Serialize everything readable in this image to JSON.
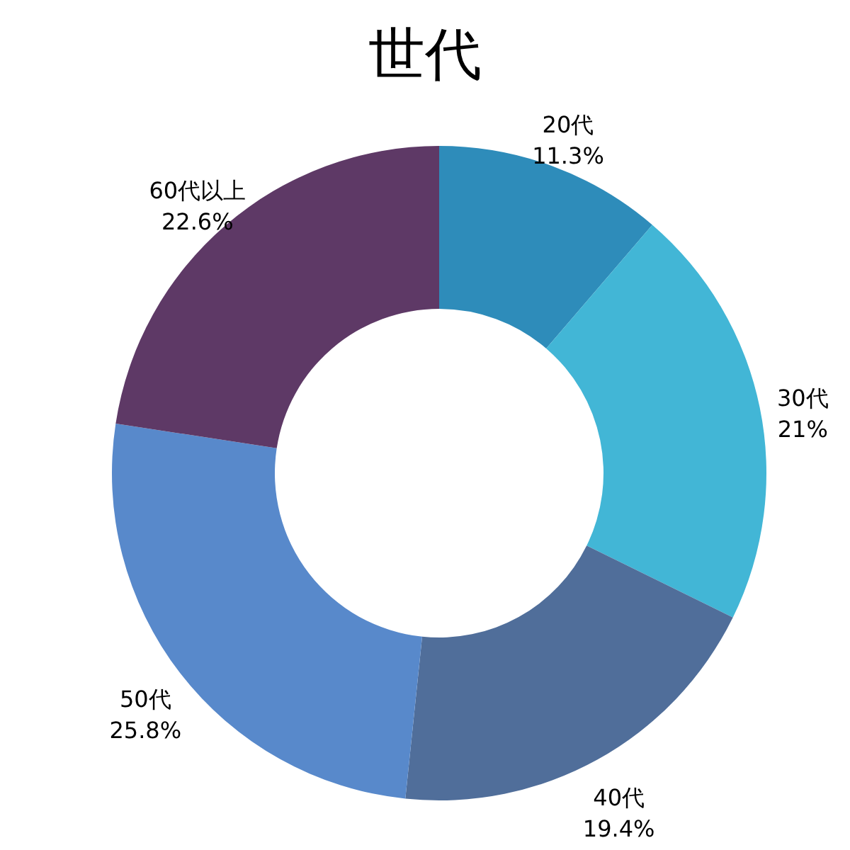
{
  "chart_data": {
    "type": "donut",
    "title": "世代",
    "categories": [
      "20代",
      "30代",
      "40代",
      "50代",
      "60代以上"
    ],
    "values": [
      11.3,
      21,
      19.4,
      25.8,
      22.6
    ],
    "value_labels": [
      "11.3%",
      "21%",
      "19.4%",
      "25.8%",
      "22.6%"
    ],
    "colors": [
      "#2e8cba",
      "#42b6d6",
      "#506e9a",
      "#5889cb",
      "#5e3966"
    ],
    "legend": false
  }
}
